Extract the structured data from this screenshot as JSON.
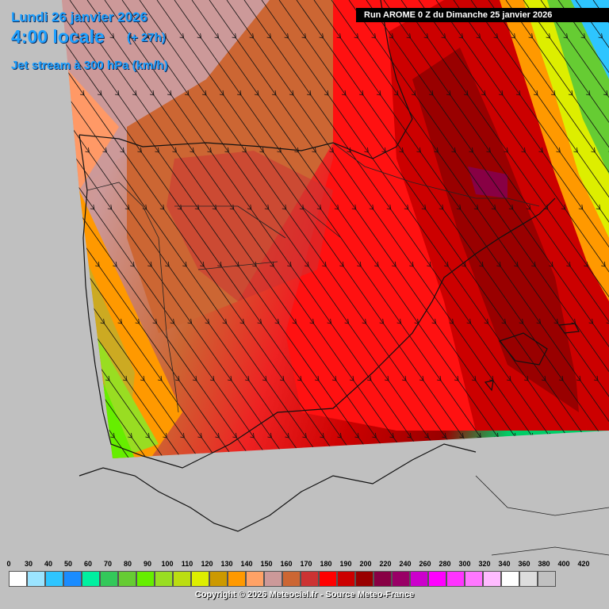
{
  "header": {
    "date_line": "Lundi 26 janvier 2026",
    "time_line": "4:00 locale",
    "offset": "(+ 27h)",
    "parameter": "Jet stream à 300 hPa (km/h)",
    "run_info": "Run AROME 0 Z du Dimanche 25 janvier 2026"
  },
  "legend": {
    "labels": [
      "0",
      "30",
      "40",
      "50",
      "60",
      "70",
      "80",
      "90",
      "100",
      "110",
      "120",
      "130",
      "140",
      "150",
      "160",
      "170",
      "180",
      "190",
      "200",
      "220",
      "240",
      "260",
      "280",
      "300",
      "320",
      "340",
      "360",
      "380",
      "400",
      "420"
    ],
    "colors": [
      "#ffffff",
      "#9be4ff",
      "#2ec5ff",
      "#1a8cff",
      "#00f0a0",
      "#33c85a",
      "#66cc33",
      "#66ee00",
      "#99dd22",
      "#bbdd11",
      "#ddee00",
      "#cc9900",
      "#ff9900",
      "#ffa266",
      "#cc9999",
      "#cc6633",
      "#cc3333",
      "#ff0000",
      "#cc0000",
      "#990000",
      "#880044",
      "#990066",
      "#cc00cc",
      "#ff00ff",
      "#ff33ff",
      "#ff77ff",
      "#ffbbff",
      "#ffffff",
      "#dddddd",
      "#c0c0c0"
    ]
  },
  "copyright": "Copyright © 2026 Meteociel.fr - Source Meteo-France",
  "colors": {
    "background": "#c0c0c0",
    "title": "#1ea0ff",
    "core_jet": "#880000"
  },
  "icons": [
    "wind-arrows",
    "coastline",
    "borders"
  ]
}
